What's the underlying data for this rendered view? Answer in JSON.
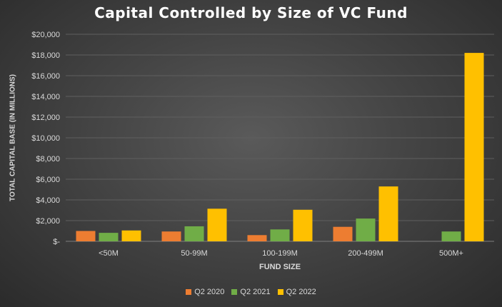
{
  "chart_data": {
    "type": "bar",
    "title": "Capital Controlled by Size of VC Fund",
    "xlabel": "FUND SIZE",
    "ylabel": "TOTAL CAPITAL BASE (IN MILLIONS)",
    "categories": [
      "<50M",
      "50-99M",
      "100-199M",
      "200-499M",
      "500M+"
    ],
    "series": [
      {
        "name": "Q2 2020",
        "color": "#ed7d31",
        "values": [
          1000,
          950,
          600,
          1400,
          0
        ]
      },
      {
        "name": "Q2 2021",
        "color": "#70ad47",
        "values": [
          820,
          1450,
          1150,
          2200,
          950
        ]
      },
      {
        "name": "Q2 2022",
        "color": "#ffc000",
        "values": [
          1050,
          3150,
          3050,
          5300,
          18200
        ]
      }
    ],
    "ylim": [
      0,
      20000
    ],
    "yticks": [
      0,
      2000,
      4000,
      6000,
      8000,
      10000,
      12000,
      14000,
      16000,
      18000,
      20000
    ],
    "ytick_labels": [
      "$-",
      "$2,000",
      "$4,000",
      "$6,000",
      "$8,000",
      "$10,000",
      "$12,000",
      "$14,000",
      "$16,000",
      "$18,000",
      "$20,000"
    ],
    "grid": true,
    "legend_position": "bottom"
  }
}
